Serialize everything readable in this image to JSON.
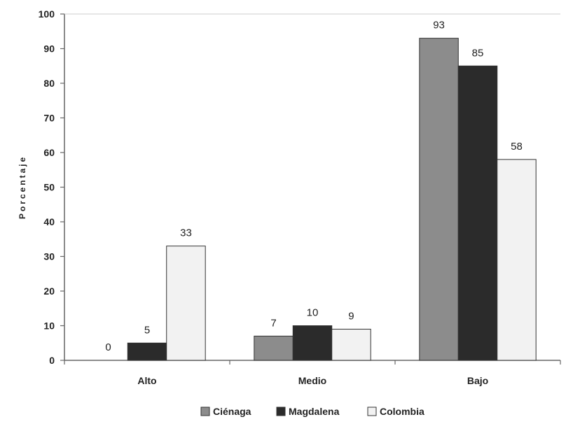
{
  "chart_data": {
    "type": "bar",
    "title": "",
    "xlabel": "",
    "ylabel": "Porcentaje",
    "categories": [
      "Alto",
      "Medio",
      "Bajo"
    ],
    "series": [
      {
        "name": "Ciénaga",
        "values": [
          0,
          7,
          93
        ],
        "color": "#8c8c8c"
      },
      {
        "name": "Magdalena",
        "values": [
          5,
          10,
          85
        ],
        "color": "#2b2b2b"
      },
      {
        "name": "Colombia",
        "values": [
          33,
          9,
          58
        ],
        "color": "#f2f2f2"
      }
    ],
    "ylim": [
      0,
      100
    ],
    "yticks": [
      0,
      10,
      20,
      30,
      40,
      50,
      60,
      70,
      80,
      90,
      100
    ],
    "grid": false,
    "legend_position": "bottom"
  }
}
